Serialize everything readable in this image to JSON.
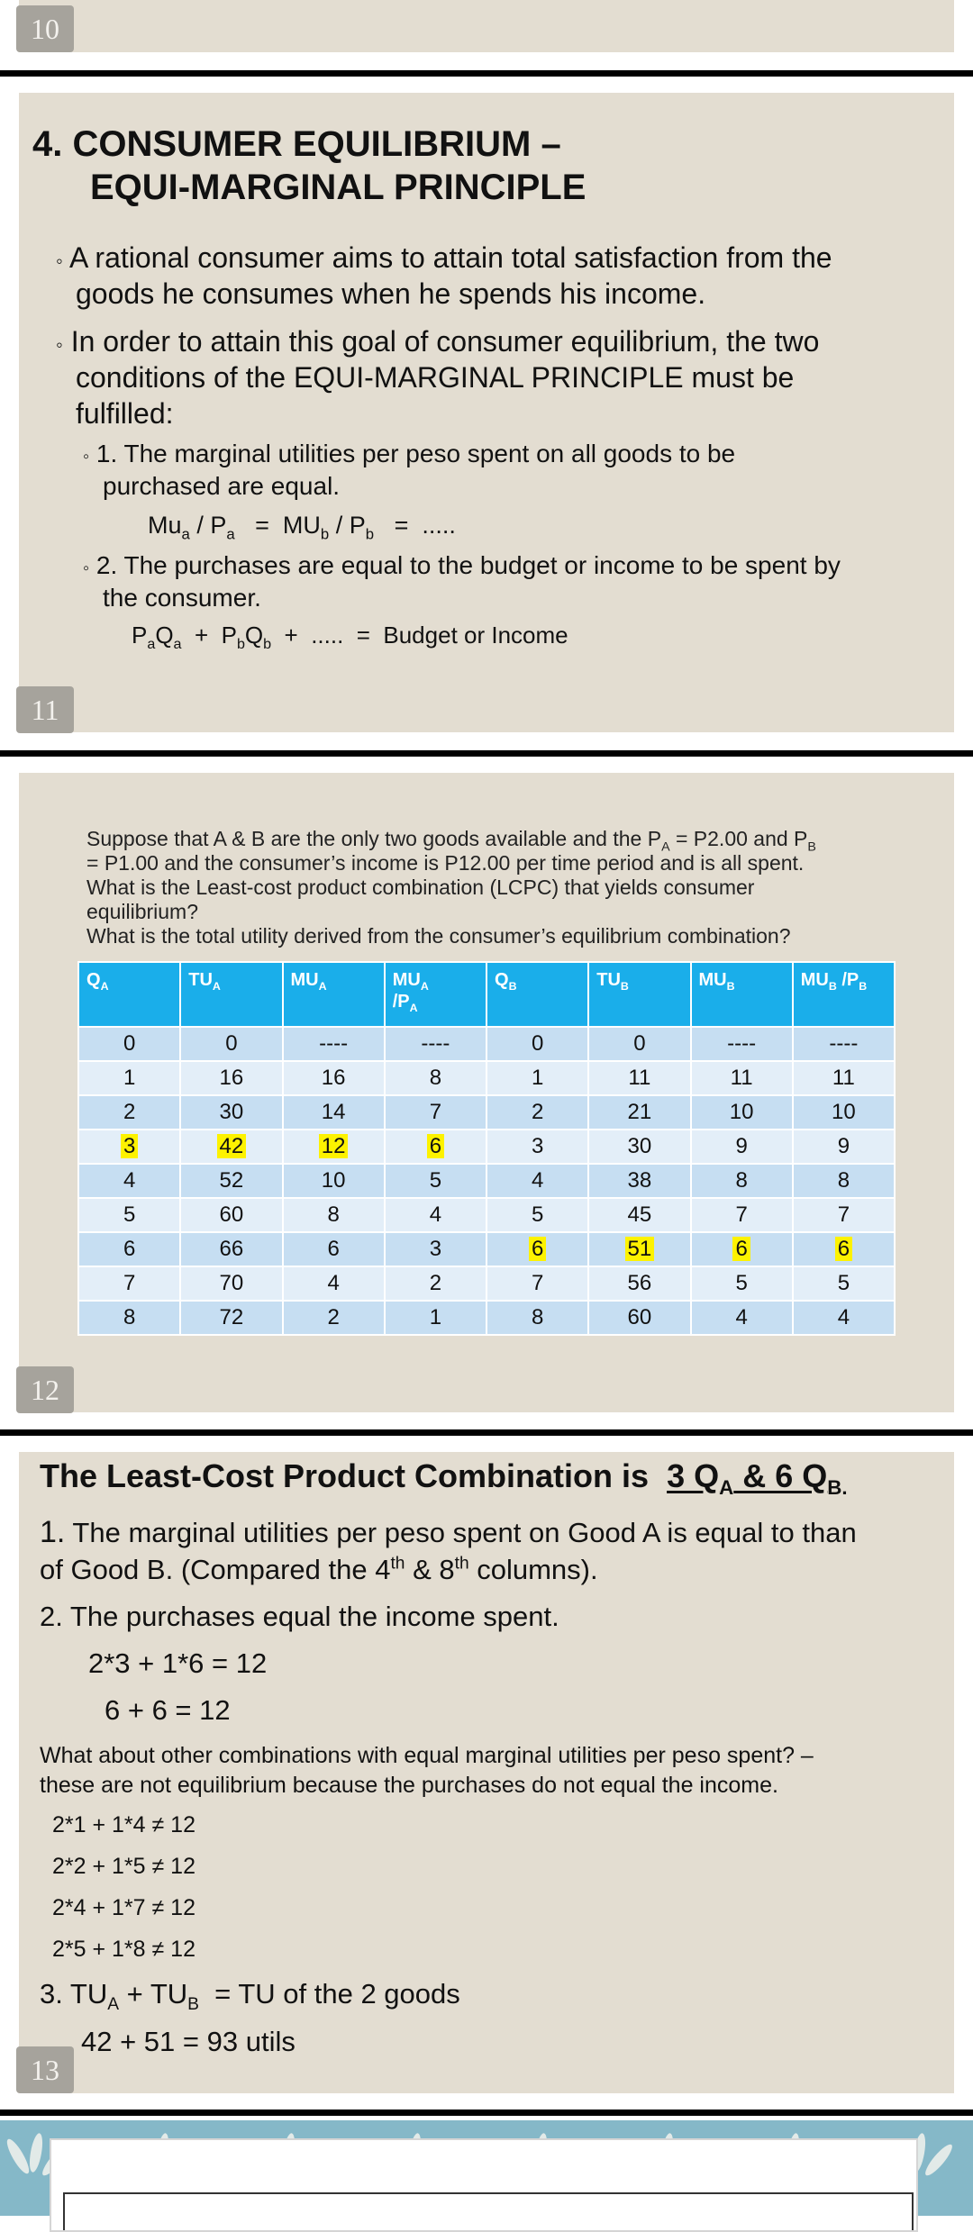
{
  "slide10": {
    "page_number": "10"
  },
  "slide11": {
    "page_number": "11",
    "title_line1": "4. CONSUMER EQUILIBRIUM –",
    "title_line2": "EQUI-MARGINAL PRINCIPLE",
    "bullet1_line1": "A rational consumer aims to attain total satisfaction from the",
    "bullet1_line2": "goods he consumes when he spends his income.",
    "bullet2_line1": "In order to attain this goal of consumer equilibrium, the two",
    "bullet2_line2": "conditions of the EQUI-MARGINAL PRINCIPLE must be",
    "bullet2_line3": "fulfilled:",
    "cond1_line1": "1. The marginal utilities per peso spent on all goods to be",
    "cond1_line2": "purchased are equal.",
    "cond2_line1": "2. The purchases are equal to the budget or income to be spent by",
    "cond2_line2": "the consumer.",
    "bullet_marker": "◦"
  },
  "slide12": {
    "page_number": "12",
    "question_lines": [
      "Suppose that A & B are the only two goods available and the P",
      "= P1.00 and the consumer’s income is P12.00 per time period and is all spent.",
      "What is the Least-cost product combination (LCPC) that yields consumer",
      "equilibrium?",
      "What is the total utility derived from the consumer’s equilibrium combination?"
    ],
    "columns": [
      "QA",
      "TUA",
      "MUA",
      "MUA /PA",
      "QB",
      "TUB",
      "MUB",
      "MUB /PB"
    ],
    "rows": [
      [
        "0",
        "0",
        "----",
        "----",
        "0",
        "0",
        "----",
        "----"
      ],
      [
        "1",
        "16",
        "16",
        "8",
        "1",
        "11",
        "11",
        "11"
      ],
      [
        "2",
        "30",
        "14",
        "7",
        "2",
        "21",
        "10",
        "10"
      ],
      [
        "3",
        "42",
        "12",
        "6",
        "3",
        "30",
        "9",
        "9"
      ],
      [
        "4",
        "52",
        "10",
        "5",
        "4",
        "38",
        "8",
        "8"
      ],
      [
        "5",
        "60",
        "8",
        "4",
        "5",
        "45",
        "7",
        "7"
      ],
      [
        "6",
        "66",
        "6",
        "3",
        "6",
        "51",
        "6",
        "6"
      ],
      [
        "7",
        "70",
        "4",
        "2",
        "7",
        "56",
        "5",
        "5"
      ],
      [
        "8",
        "72",
        "2",
        "1",
        "8",
        "60",
        "4",
        "4"
      ]
    ],
    "highlight_color": "#fdf200",
    "header_color": "#1aaeea"
  },
  "slide13": {
    "page_number": "13",
    "title_prefix": "The Least-Cost Product Combination is",
    "point1_num": "1.",
    "point1_line1": "The marginal utilities per peso spent on Good A is equal to than",
    "point1_line2": "of Good B. (Compared the 4",
    "point2": "2. The purchases equal the income spent.",
    "calc1": "2*3 + 1*6 = 12",
    "calc2": "6 + 6 = 12",
    "other_line1": "What about other combinations with equal marginal utilities per peso spent? –",
    "other_line2": "these are not equilibrium because the purchases do not equal the income.",
    "ineq": [
      "2*1 + 1*4 ≠ 12",
      "2*2 + 1*5 ≠ 12",
      "2*4 + 1*7 ≠ 12",
      "2*5 + 1*8 ≠ 12"
    ],
    "total_calc": "42 + 51 = 93 utils"
  }
}
